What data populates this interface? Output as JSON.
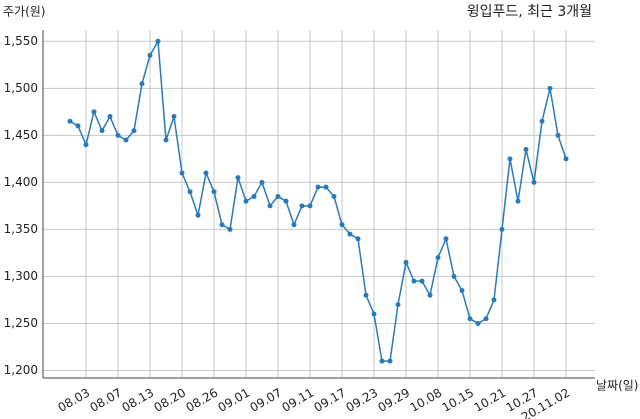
{
  "chart_data": {
    "type": "line",
    "title": "윙입푸드, 최근 3개월",
    "y_label": "주가(원)",
    "x_label": "날짜(일)",
    "categories": [
      null,
      null,
      "08.03",
      null,
      null,
      null,
      "08.07",
      null,
      null,
      null,
      "08.13",
      null,
      null,
      null,
      "08.20",
      null,
      null,
      null,
      "08.26",
      null,
      null,
      null,
      "09.01",
      null,
      null,
      null,
      "09.07",
      null,
      null,
      null,
      "09.11",
      null,
      null,
      null,
      "09.17",
      null,
      null,
      null,
      "09.23",
      null,
      null,
      null,
      "09.29",
      null,
      null,
      null,
      "10.08",
      null,
      null,
      null,
      "10.15",
      null,
      null,
      null,
      "10.21",
      null,
      null,
      null,
      "10.27",
      null,
      null,
      null,
      "20.11.02"
    ],
    "series": [
      {
        "name": "윙입푸드",
        "color": "#2a7ab8",
        "values": [
          1465,
          1460,
          1440,
          1475,
          1455,
          1470,
          1450,
          1445,
          1455,
          1505,
          1535,
          1550,
          1445,
          1470,
          1410,
          1390,
          1365,
          1410,
          1390,
          1355,
          1350,
          1405,
          1380,
          1385,
          1400,
          1375,
          1385,
          1380,
          1355,
          1375,
          1375,
          1395,
          1395,
          1385,
          1355,
          1345,
          1340,
          1280,
          1260,
          1210,
          1210,
          1270,
          1315,
          1295,
          1295,
          1280,
          1320,
          1340,
          1300,
          1285,
          1255,
          1250,
          1255,
          1275,
          1350,
          1425,
          1380,
          1435,
          1400,
          1465,
          1500,
          1450,
          1425
        ]
      }
    ],
    "ylim": [
      1192,
      1562
    ],
    "yticks": [
      {
        "value": 1200,
        "label": "1,200"
      },
      {
        "value": 1250,
        "label": "1,250"
      },
      {
        "value": 1300,
        "label": "1,300"
      },
      {
        "value": 1350,
        "label": "1,350"
      },
      {
        "value": 1400,
        "label": "1,400"
      },
      {
        "value": 1450,
        "label": "1,450"
      },
      {
        "value": 1500,
        "label": "1,500"
      },
      {
        "value": 1550,
        "label": "1,550"
      }
    ],
    "grid": true
  }
}
